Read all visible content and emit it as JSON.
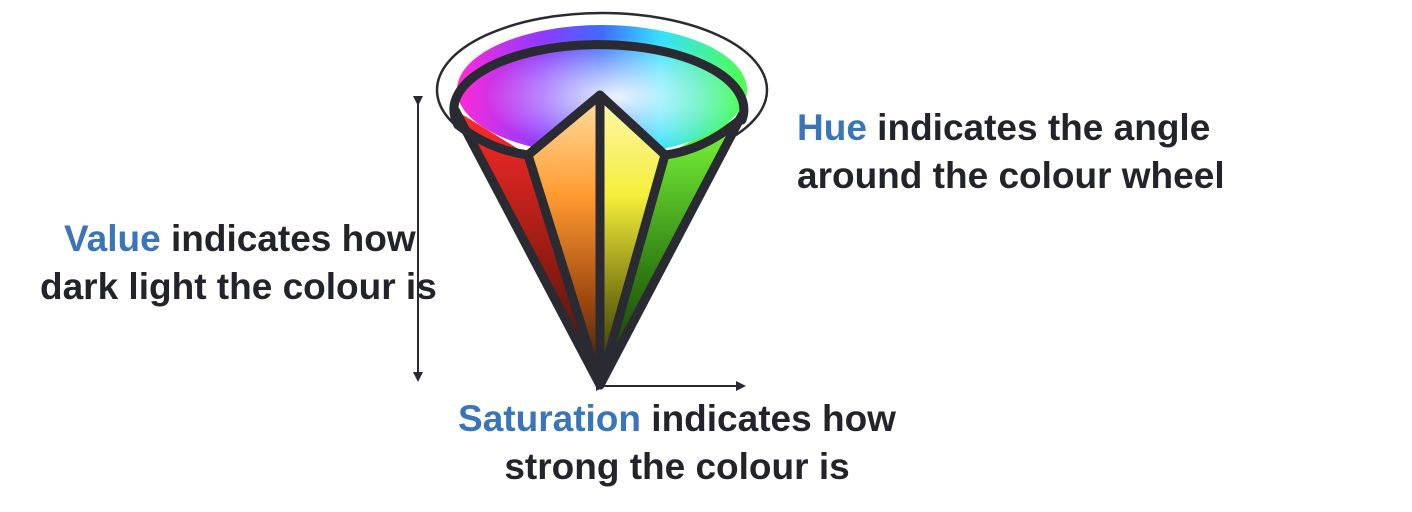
{
  "captions": {
    "hue": {
      "keyword": "Hue",
      "line1_rest": " indicates the angle",
      "line2": "around the colour wheel"
    },
    "value": {
      "keyword": "Value",
      "line1_rest": " indicates how",
      "line2": "dark light the colour is"
    },
    "saturation": {
      "keyword": "Saturation",
      "line1_rest": " indicates how",
      "line2": "strong the colour is"
    }
  },
  "colors": {
    "keyword": "#3a74b9",
    "text": "#23232b",
    "outline": "#2a2a33"
  }
}
